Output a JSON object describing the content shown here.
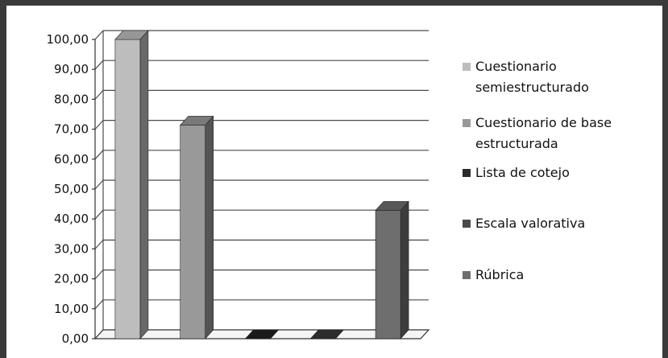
{
  "chart_data": {
    "type": "bar",
    "categories": [
      "Cuestionario semiestructurado",
      "Cuestionario de base estructurada",
      "Lista de cotejo",
      "Escala valorativa",
      "Rúbrica"
    ],
    "values": [
      100.0,
      71.4,
      0.0,
      0.0,
      42.9
    ],
    "colors": [
      "#bdbdbd",
      "#999999",
      "#2b2b2b",
      "#4a4a4a",
      "#6e6e6e"
    ],
    "legend": [
      {
        "lines": [
          "Cuestionario",
          "semiestructurado"
        ],
        "color": "#bdbdbd"
      },
      {
        "lines": [
          "Cuestionario de base",
          "estructurada"
        ],
        "color": "#999999"
      },
      {
        "lines": [
          "Lista de cotejo"
        ],
        "color": "#2b2b2b"
      },
      {
        "lines": [
          "Escala valorativa"
        ],
        "color": "#4a4a4a"
      },
      {
        "lines": [
          "Rúbrica"
        ],
        "color": "#6e6e6e"
      }
    ],
    "yticks": [
      "0,00",
      "10,00",
      "20,00",
      "30,00",
      "40,00",
      "50,00",
      "60,00",
      "70,00",
      "80,00",
      "90,00",
      "100,00"
    ],
    "ylim": [
      0,
      100
    ],
    "grid": true,
    "legend_position": "right",
    "title": "",
    "xlabel": "",
    "ylabel": "",
    "style": "3d-column"
  }
}
